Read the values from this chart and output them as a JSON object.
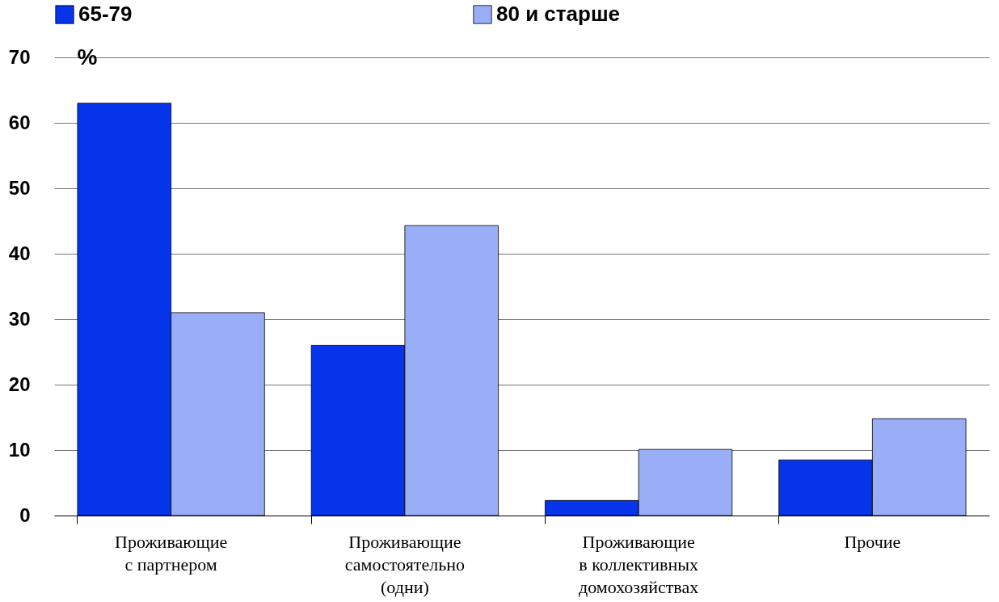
{
  "chart_data": {
    "type": "bar",
    "ylabel": "%",
    "categories": [
      "Проживающие с партнером",
      "Проживающие самостоятельно (одни)",
      "Проживающие в коллективных домохозяйствах",
      "Прочие"
    ],
    "series": [
      {
        "name": "65-79",
        "color": "#0534ea",
        "values": [
          63,
          26,
          2.3,
          8.5
        ]
      },
      {
        "name": "80 и старше",
        "color": "#99aef6",
        "values": [
          31,
          44.3,
          10.1,
          14.8
        ]
      }
    ],
    "ylim": [
      0,
      70
    ],
    "yticks": [
      0,
      10,
      20,
      30,
      40,
      50,
      60,
      70
    ],
    "grid": "y",
    "legend": "top"
  }
}
